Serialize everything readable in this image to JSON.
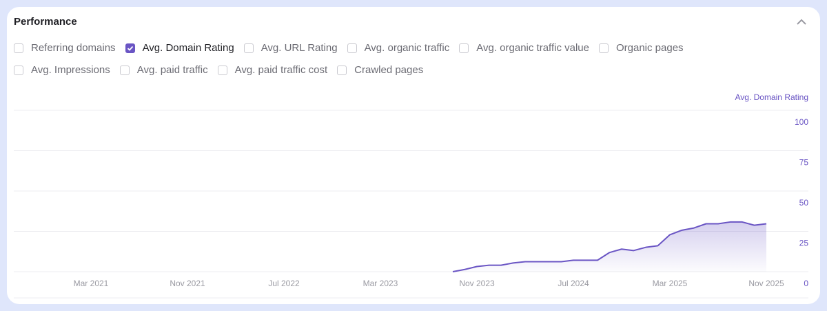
{
  "title": "Performance",
  "collapse_icon": "chevron-up-icon",
  "metrics": [
    {
      "label": "Referring domains",
      "checked": false
    },
    {
      "label": "Avg. Domain Rating",
      "checked": true
    },
    {
      "label": "Avg. URL Rating",
      "checked": false
    },
    {
      "label": "Avg. organic traffic",
      "checked": false
    },
    {
      "label": "Avg. organic traffic value",
      "checked": false
    },
    {
      "label": "Organic pages",
      "checked": false
    },
    {
      "label": "Avg. Impressions",
      "checked": false
    },
    {
      "label": "Avg. paid traffic",
      "checked": false
    },
    {
      "label": "Avg. paid traffic cost",
      "checked": false
    },
    {
      "label": "Crawled pages",
      "checked": false
    }
  ],
  "colors": {
    "accent": "#6a55c4",
    "grid": "#ececf0",
    "tick": "#9a9aa2"
  },
  "chart_data": {
    "type": "area",
    "ylabel": "Avg. Domain Rating",
    "ylim": [
      0,
      100
    ],
    "yticks": [
      "0",
      "25",
      "50",
      "75",
      "100"
    ],
    "xticks": [
      "Mar 2021",
      "Nov 2021",
      "Jul 2022",
      "Mar 2023",
      "Nov 2023",
      "Jul 2024",
      "Mar 2025",
      "Nov 2025"
    ],
    "grid": true,
    "series": [
      {
        "x": [
          "2023-09",
          "2023-10",
          "2023-11",
          "2023-12",
          "2024-01",
          "2024-02",
          "2024-03",
          "2024-04",
          "2024-05",
          "2024-06",
          "2024-07",
          "2024-08",
          "2024-09",
          "2024-10",
          "2024-11",
          "2024-12",
          "2025-01",
          "2025-02",
          "2025-03",
          "2025-04",
          "2025-05",
          "2025-06",
          "2025-07",
          "2025-08",
          "2025-09",
          "2025-10",
          "2025-11"
        ],
        "values": [
          0,
          1.4,
          3.2,
          4,
          4,
          5.4,
          6.2,
          6.2,
          6.2,
          6.2,
          7.1,
          7.1,
          7.1,
          11.9,
          14,
          13.1,
          15.1,
          16.1,
          22.9,
          25.7,
          27.1,
          29.7,
          29.7,
          30.8,
          30.8,
          28.8,
          29.7
        ]
      }
    ]
  }
}
